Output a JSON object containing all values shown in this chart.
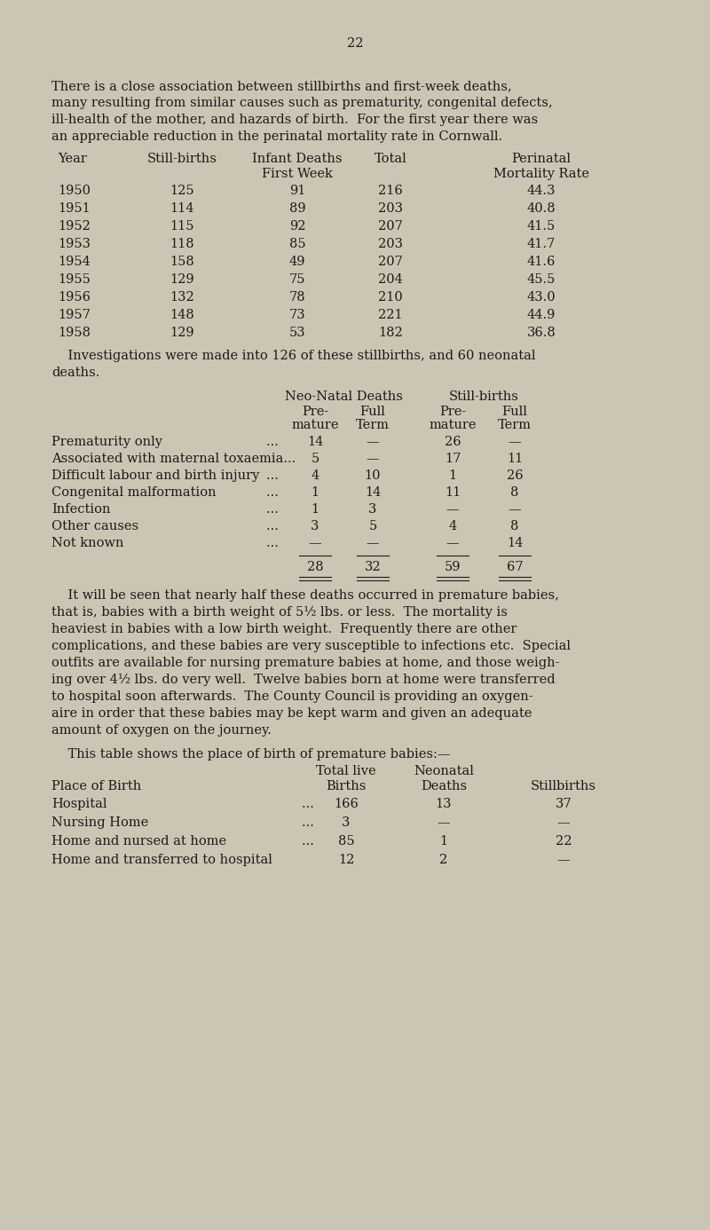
{
  "page_number": "22",
  "bg_color": "#cbc6b4",
  "text_color": "#1a1a1a",
  "fs": 10.5,
  "fs_small": 10.0,
  "intro_lines": [
    "There is a close association between stillbirths and first-week deaths,",
    "many resulting from similar causes such as prematurity, congenital defects,",
    "ill-health of the mother, and hazards of birth.  For the first year there was",
    "an appreciable reduction in the perinatal mortality rate in Cornwall."
  ],
  "table1_data": [
    [
      "1950",
      "125",
      "91",
      "216",
      "44.3"
    ],
    [
      "1951",
      "114",
      "89",
      "203",
      "40.8"
    ],
    [
      "1952",
      "115",
      "92",
      "207",
      "41.5"
    ],
    [
      "1953",
      "118",
      "85",
      "203",
      "41.7"
    ],
    [
      "1954",
      "158",
      "49",
      "207",
      "41.6"
    ],
    [
      "1955",
      "129",
      "75",
      "204",
      "45.5"
    ],
    [
      "1956",
      "132",
      "78",
      "210",
      "43.0"
    ],
    [
      "1957",
      "148",
      "73",
      "221",
      "44.9"
    ],
    [
      "1958",
      "129",
      "53",
      "182",
      "36.8"
    ]
  ],
  "inter_lines": [
    "    Investigations were made into 126 of these stillbirths, and 60 neonatal",
    "deaths."
  ],
  "table2_rows": [
    [
      "Prematurity only",
      "... ",
      "14",
      "—",
      "26",
      "—"
    ],
    [
      "Associated with maternal toxaemia...",
      "",
      "5",
      "—",
      "17",
      "11"
    ],
    [
      "Difficult labour and birth injury",
      "... ",
      "4",
      "10",
      "1",
      "26"
    ],
    [
      "Congenital malformation",
      "... ",
      "1",
      "14",
      "11",
      "8"
    ],
    [
      "Infection",
      "... ",
      "1",
      "3",
      "—",
      "—"
    ],
    [
      "Other causes",
      "... ",
      "3",
      "5",
      "4",
      "8"
    ],
    [
      "Not known",
      "... ",
      "—",
      "—",
      "—",
      "14"
    ]
  ],
  "table2_totals": [
    "28",
    "32",
    "59",
    "67"
  ],
  "body2_lines": [
    "    It will be seen that nearly half these deaths occurred in premature babies,",
    "that is, babies with a birth weight of 5½ lbs. or less.  The mortality is",
    "heaviest in babies with a low birth weight.  Frequently there are other",
    "complications, and these babies are very susceptible to infections etc.  Special",
    "outfits are available for nursing premature babies at home, and those weigh-",
    "ing over 4½ lbs. do very well.  Twelve babies born at home were transferred",
    "to hospital soon afterwards.  The County Council is providing an oxygen-",
    "aire in order that these babies may be kept warm and given an adequate",
    "amount of oxygen on the journey."
  ],
  "table3_intro": "    This table shows the place of birth of premature babies:—",
  "table3_data": [
    [
      "Hospital",
      "... ",
      "166",
      "13",
      "37"
    ],
    [
      "Nursing Home",
      "... ",
      "3",
      "—",
      "—"
    ],
    [
      "Home and nursed at home",
      "... ",
      "85",
      "1",
      "22"
    ],
    [
      "Home and transferred to hospital",
      "",
      "12",
      "2",
      "—"
    ]
  ]
}
